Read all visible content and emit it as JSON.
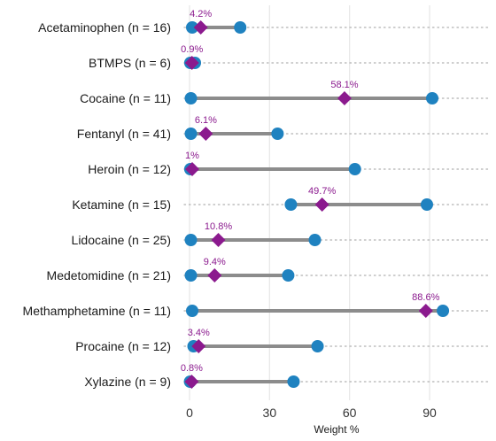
{
  "chart_data": {
    "type": "dumbbell",
    "xlabel": "Weight %",
    "xlim": [
      0,
      113
    ],
    "xticks": [
      0,
      30,
      60,
      90
    ],
    "grid": "vertical-major",
    "colors": {
      "range_point": "#1f82c0",
      "range_line": "#8c8c8c",
      "median": "#8b1a8e",
      "label": "#8b1a8e",
      "guide": "#b0b0b0",
      "grid": "#e6e6e6"
    },
    "categories": [
      "Acetaminophen (n = 16)",
      "BTMPS (n = 6)",
      "Cocaine (n = 11)",
      "Fentanyl (n = 41)",
      "Heroin (n = 12)",
      "Ketamine (n = 15)",
      "Lidocaine (n = 25)",
      "Medetomidine (n = 21)",
      "Methamphetamine (n = 11)",
      "Procaine (n = 12)",
      "Xylazine (n = 9)"
    ],
    "series": [
      {
        "name": "min",
        "values": [
          1,
          0.3,
          0.5,
          0.5,
          0.3,
          38,
          0.5,
          0.5,
          1,
          1.5,
          0.2
        ]
      },
      {
        "name": "max",
        "values": [
          19,
          2,
          91,
          33,
          62,
          89,
          47,
          37,
          95,
          48,
          39
        ]
      },
      {
        "name": "median",
        "values": [
          4.2,
          0.9,
          58.1,
          6.1,
          1,
          49.7,
          10.8,
          9.4,
          88.6,
          3.4,
          0.8
        ]
      }
    ],
    "median_labels": [
      "4.2%",
      "0.9%",
      "58.1%",
      "6.1%",
      "1%",
      "49.7%",
      "10.8%",
      "9.4%",
      "88.6%",
      "3.4%",
      "0.8%"
    ]
  }
}
